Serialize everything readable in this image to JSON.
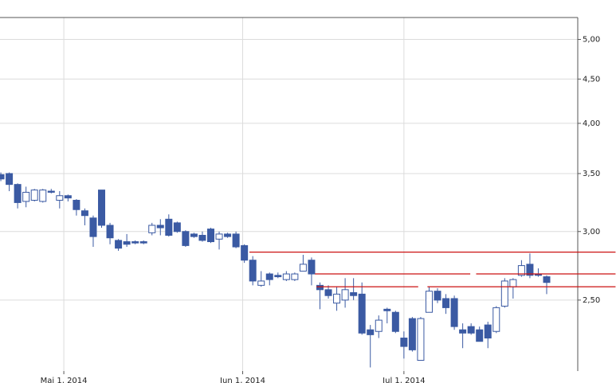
{
  "chart_data": {
    "type": "candlestick",
    "categories": [
      null,
      null,
      null,
      null,
      null,
      null,
      null,
      null,
      null,
      null,
      null,
      null,
      null,
      null,
      null,
      null,
      null,
      null,
      null,
      null,
      null,
      null,
      null,
      null,
      null,
      null,
      null,
      null,
      null,
      null,
      null,
      null,
      null,
      null,
      null,
      null,
      null,
      null,
      null,
      null,
      null,
      null,
      null,
      null,
      null,
      null,
      null,
      null,
      null,
      null,
      null,
      null,
      null,
      null,
      null,
      null,
      null,
      null,
      null,
      null,
      null,
      null,
      null,
      null,
      null,
      null
    ],
    "open": [
      3.49,
      3.5,
      3.4,
      3.25,
      3.26,
      3.25,
      3.34,
      3.26,
      3.3,
      3.26,
      3.17,
      3.11,
      3.35,
      3.05,
      2.93,
      2.92,
      2.92,
      2.92,
      2.99,
      3.05,
      3.1,
      3.07,
      3.0,
      2.98,
      2.97,
      3.02,
      2.94,
      2.98,
      2.98,
      2.89,
      2.78,
      2.6,
      2.68,
      2.67,
      2.64,
      2.64,
      2.7,
      2.78,
      2.6,
      2.57,
      2.48,
      2.5,
      2.55,
      2.54,
      2.31,
      2.3,
      2.44,
      2.42,
      2.26,
      2.38,
      2.13,
      2.42,
      2.56,
      2.51,
      2.51,
      2.31,
      2.33,
      2.31,
      2.34,
      2.3,
      2.46,
      2.59,
      2.67,
      2.75,
      2.68,
      2.66
    ],
    "high": [
      3.51,
      3.51,
      3.41,
      3.38,
      3.36,
      3.36,
      3.36,
      3.34,
      3.31,
      3.27,
      3.19,
      3.13,
      3.35,
      3.07,
      2.94,
      2.98,
      2.93,
      2.93,
      3.07,
      3.1,
      3.14,
      3.08,
      3.01,
      2.99,
      3.0,
      3.03,
      3.0,
      2.99,
      3.0,
      2.9,
      2.81,
      2.7,
      2.69,
      2.69,
      2.7,
      2.69,
      2.82,
      2.8,
      2.62,
      2.6,
      2.59,
      2.65,
      2.65,
      2.62,
      2.34,
      2.4,
      2.45,
      2.43,
      2.3,
      2.39,
      2.39,
      2.59,
      2.58,
      2.54,
      2.53,
      2.35,
      2.35,
      2.33,
      2.36,
      2.46,
      2.65,
      2.65,
      2.78,
      2.83,
      2.72,
      2.67
    ],
    "low": [
      3.43,
      3.34,
      3.19,
      3.2,
      3.25,
      3.24,
      3.32,
      3.19,
      3.25,
      3.13,
      3.05,
      2.88,
      3.03,
      2.9,
      2.85,
      2.88,
      2.9,
      2.9,
      2.97,
      2.97,
      2.96,
      2.99,
      2.88,
      2.95,
      2.92,
      2.91,
      2.86,
      2.95,
      2.87,
      2.76,
      2.6,
      2.59,
      2.6,
      2.65,
      2.63,
      2.63,
      2.7,
      2.6,
      2.44,
      2.51,
      2.43,
      2.45,
      2.5,
      2.28,
      2.09,
      2.26,
      2.35,
      2.29,
      2.14,
      2.18,
      2.13,
      2.42,
      2.48,
      2.41,
      2.31,
      2.2,
      2.28,
      2.24,
      2.2,
      2.29,
      2.45,
      2.51,
      2.66,
      2.65,
      2.66,
      2.54
    ],
    "close": [
      3.45,
      3.4,
      3.24,
      3.33,
      3.35,
      3.35,
      3.33,
      3.3,
      3.28,
      3.18,
      3.13,
      2.96,
      3.05,
      2.95,
      2.87,
      2.9,
      2.91,
      2.91,
      3.05,
      3.03,
      2.97,
      3.0,
      2.89,
      2.96,
      2.93,
      2.92,
      2.98,
      2.96,
      2.88,
      2.78,
      2.63,
      2.63,
      2.64,
      2.66,
      2.68,
      2.68,
      2.75,
      2.68,
      2.57,
      2.53,
      2.54,
      2.57,
      2.53,
      2.29,
      2.28,
      2.37,
      2.43,
      2.3,
      2.21,
      2.19,
      2.38,
      2.56,
      2.5,
      2.45,
      2.33,
      2.29,
      2.29,
      2.24,
      2.26,
      2.45,
      2.63,
      2.64,
      2.74,
      2.67,
      2.67,
      2.62
    ],
    "xlim": [
      -0.1,
      68.7
    ],
    "xticks": [
      {
        "value": 7.5,
        "label": "Mai 1, 2014"
      },
      {
        "value": 28.8,
        "label": "Jun 1, 2014"
      },
      {
        "value": 48,
        "label": "Jul 1, 2014"
      }
    ],
    "ylim": [
      2.07,
      5.3
    ],
    "yticks": [
      {
        "value": 2.5,
        "label": "2,50"
      },
      {
        "value": 3,
        "label": "3,00"
      },
      {
        "value": 3.5,
        "label": "3,50"
      },
      {
        "value": 4,
        "label": "4,00"
      },
      {
        "value": 4.5,
        "label": "4,50"
      },
      {
        "value": 5,
        "label": "5,00"
      }
    ],
    "log_scale": true,
    "grid": true,
    "up_color": "#ffffff",
    "down_color": "#3b5aa3",
    "edge_color": "#3b5aa3",
    "level_color": "#cc1111",
    "levels": [
      {
        "value": 2.84,
        "x": [
          29.6,
          73.2
        ]
      },
      {
        "value": 2.68,
        "x": [
          37.4,
          55.9
        ]
      },
      {
        "value": 2.68,
        "x": [
          56.6,
          73.2
        ]
      },
      {
        "value": 2.59,
        "x": [
          37.6,
          49.7
        ]
      },
      {
        "value": 2.59,
        "x": [
          50.8,
          73.2
        ]
      }
    ]
  }
}
